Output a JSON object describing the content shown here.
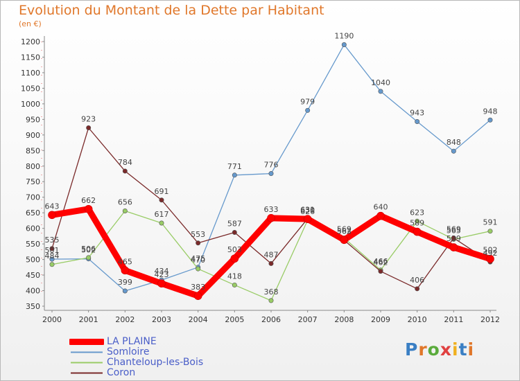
{
  "title": "Evolution du Montant de la Dette par Habitant",
  "unit_label": "(en €)",
  "logo": {
    "text": "Proxiti",
    "colors": [
      "#3a7fc4",
      "#e0772a",
      "#5aab3c",
      "#e04040",
      "#f0b020",
      "#3a7fc4",
      "#e0772a"
    ]
  },
  "chart_data": {
    "type": "line",
    "x": [
      "2000",
      "2001",
      "2002",
      "2003",
      "2004",
      "2005",
      "2006",
      "2007",
      "2008",
      "2009",
      "2010",
      "2011",
      "2012"
    ],
    "ylim": [
      350,
      1200
    ],
    "yticks": [
      350,
      400,
      450,
      500,
      550,
      600,
      650,
      700,
      750,
      800,
      850,
      900,
      950,
      1000,
      1050,
      1100,
      1150,
      1200
    ],
    "grid": false,
    "legend_position": "bottom-left",
    "series": [
      {
        "name": "LA PLAINE",
        "color": "#ff0000",
        "values": [
          643,
          662,
          465,
          423,
          383,
          503,
          633,
          630,
          563,
          640,
          589,
          539,
          502
        ],
        "labels": [
          "643",
          "662",
          "465",
          "423",
          "383",
          "503",
          "633",
          "630",
          "563",
          "640",
          "589",
          "539",
          "502"
        ]
      },
      {
        "name": "Somloire",
        "color": "#6699cc",
        "values": [
          501,
          502,
          399,
          434,
          475,
          771,
          776,
          979,
          1190,
          1040,
          943,
          848,
          948
        ],
        "labels": [
          "501",
          "502",
          "399",
          "434",
          "475",
          "771",
          "776",
          "979",
          "1190",
          "1040",
          "943",
          "848",
          "948"
        ]
      },
      {
        "name": "Chanteloup-les-Bois",
        "color": "#99cc66",
        "values": [
          484,
          506,
          656,
          617,
          470,
          418,
          368,
          626,
          569,
          466,
          623,
          565,
          591
        ],
        "labels": [
          "484",
          "506",
          "656",
          "617",
          "470",
          "418",
          "368",
          "626",
          "569",
          "466",
          "623",
          "565",
          "591"
        ]
      },
      {
        "name": "Coron",
        "color": "#7a2a2a",
        "values": [
          535,
          923,
          784,
          691,
          553,
          587,
          487,
          631,
          562,
          462,
          406,
          569,
          492
        ],
        "labels": [
          "535",
          "923",
          "784",
          "691",
          "553",
          "587",
          "487",
          "631",
          "562",
          "462",
          "406",
          "569",
          "492"
        ]
      }
    ]
  }
}
